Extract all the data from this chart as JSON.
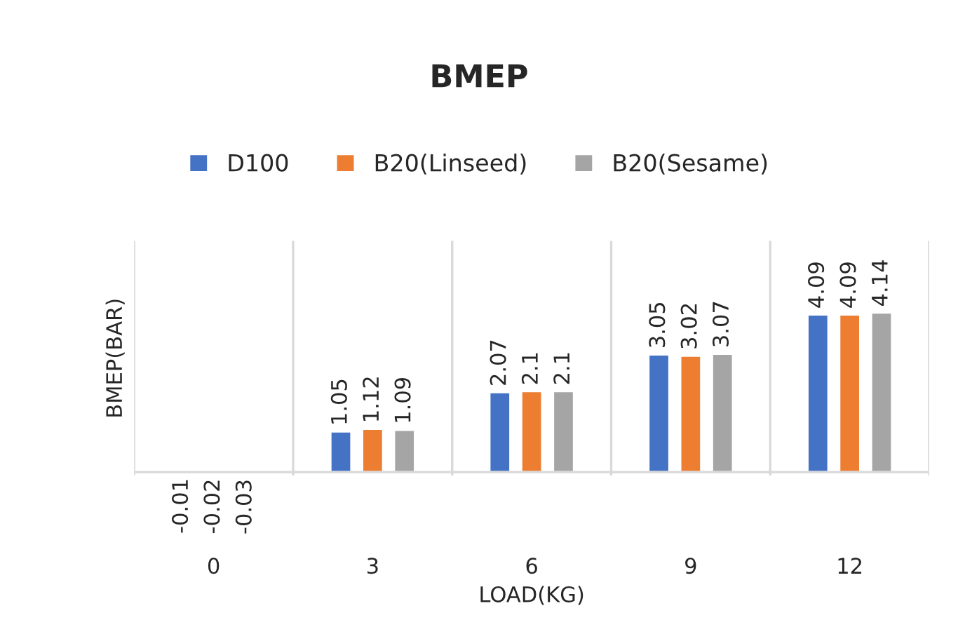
{
  "chart_data": {
    "type": "bar",
    "title": "BMEP",
    "xlabel": "LOAD(KG)",
    "ylabel": "BMEP(BAR)",
    "categories": [
      "0",
      "3",
      "6",
      "9",
      "12"
    ],
    "series": [
      {
        "name": "D100",
        "color": "#4472c4",
        "values": [
          -0.01,
          1.05,
          2.07,
          3.05,
          4.09
        ]
      },
      {
        "name": "B20(Linseed)",
        "color": "#ed7d31",
        "values": [
          -0.02,
          1.12,
          2.1,
          3.02,
          4.09
        ]
      },
      {
        "name": "B20(Sesame)",
        "color": "#a5a5a5",
        "values": [
          -0.03,
          1.09,
          2.1,
          3.07,
          4.14
        ]
      }
    ],
    "data_labels": true,
    "legend": "top",
    "grid": "x",
    "tick_labels": "x"
  }
}
